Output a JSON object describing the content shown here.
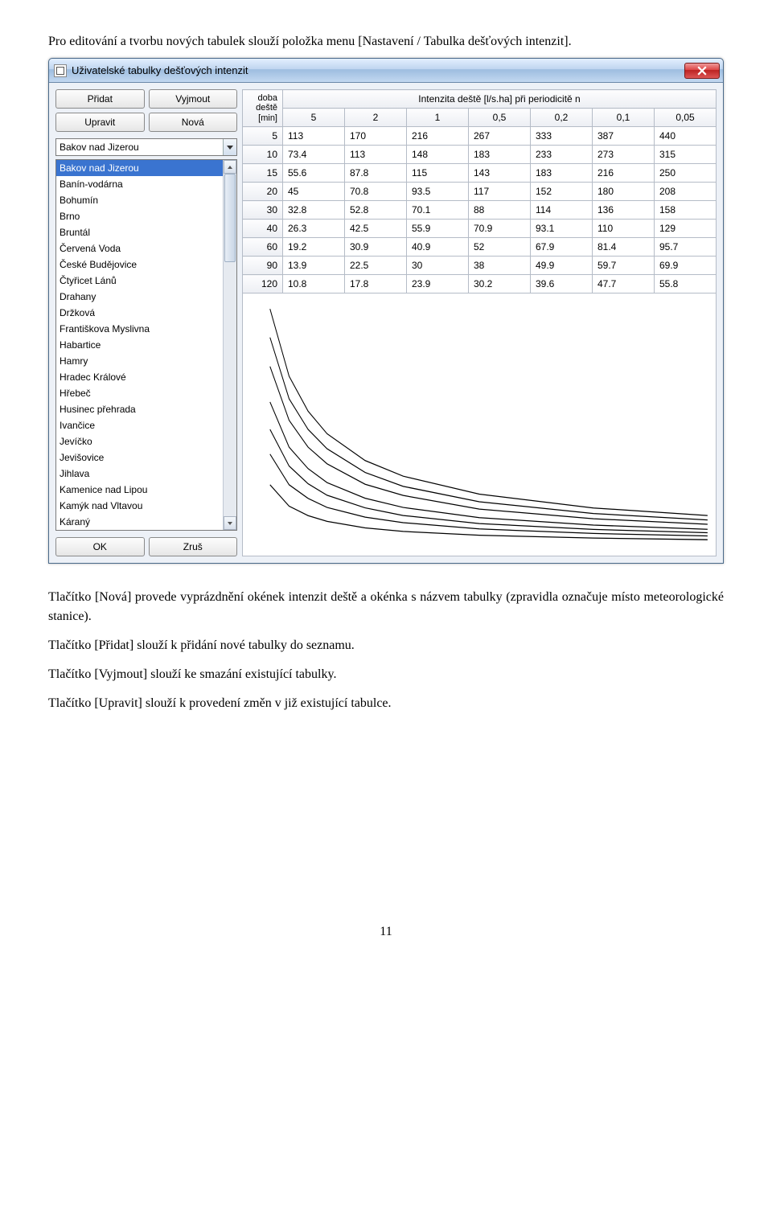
{
  "doc": {
    "para1": "Pro editování a tvorbu nových tabulek slouží položka menu [Nastavení / Tabulka dešťových intenzit].",
    "para2": "Tlačítko [Nová] provede vyprázdnění okének intenzit deště a okénka s názvem tabulky (zpravidla označuje místo meteorologické stanice).",
    "para3": "Tlačítko [Přidat] slouží k přidání nové tabulky do seznamu.",
    "para4": "Tlačítko [Vyjmout] slouží ke smazání existující tabulky.",
    "para5": "Tlačítko [Upravit] slouží k provedení změn v již existující tabulce.",
    "page_number": "11"
  },
  "window": {
    "title": "Uživatelské tabulky dešťových intenzit",
    "buttons": {
      "add": "Přidat",
      "remove": "Vyjmout",
      "edit": "Upravit",
      "new": "Nová",
      "ok": "OK",
      "cancel": "Zruš"
    },
    "combo_selected": "Bakov nad Jizerou",
    "list_items": [
      "Bakov nad Jizerou",
      "Banín-vodárna",
      "Bohumín",
      "Brno",
      "Bruntál",
      "Červená Voda",
      "České Budějovice",
      "Čtyřicet Lánů",
      "Drahany",
      "Držková",
      "Františkova Myslivna",
      "Habartice",
      "Hamry",
      "Hradec Králové",
      "Hřebeč",
      "Husinec přehrada",
      "Ivančice",
      "Jevíčko",
      "Jevišovice",
      "Jihlava",
      "Kamenice nad Lipou",
      "Kamýk nad Vltavou",
      "Káraný"
    ],
    "list_selected_index": 0,
    "table": {
      "corner_label": "doba deště [min]",
      "header_label": "Intenzita deště [l/s.ha] při periodicitě n",
      "periods": [
        "5",
        "2",
        "1",
        "0,5",
        "0,2",
        "0,1",
        "0,05"
      ],
      "durations": [
        "5",
        "10",
        "15",
        "20",
        "30",
        "40",
        "60",
        "90",
        "120"
      ],
      "rows": [
        [
          "113",
          "170",
          "216",
          "267",
          "333",
          "387",
          "440"
        ],
        [
          "73.4",
          "113",
          "148",
          "183",
          "233",
          "273",
          "315"
        ],
        [
          "55.6",
          "87.8",
          "115",
          "143",
          "183",
          "216",
          "250"
        ],
        [
          "45",
          "70.8",
          "93.5",
          "117",
          "152",
          "180",
          "208"
        ],
        [
          "32.8",
          "52.8",
          "70.1",
          "88",
          "114",
          "136",
          "158"
        ],
        [
          "26.3",
          "42.5",
          "55.9",
          "70.9",
          "93.1",
          "110",
          "129"
        ],
        [
          "19.2",
          "30.9",
          "40.9",
          "52",
          "67.9",
          "81.4",
          "95.7"
        ],
        [
          "13.9",
          "22.5",
          "30",
          "38",
          "49.9",
          "59.7",
          "69.9"
        ],
        [
          "10.8",
          "17.8",
          "23.9",
          "30.2",
          "39.6",
          "47.7",
          "55.8"
        ]
      ]
    },
    "graph": {
      "background": "#ffffff",
      "stroke": "#000000",
      "xrange": [
        0,
        120
      ],
      "series_count": 7
    }
  },
  "colors": {
    "titlebar_top": "#e3efff",
    "titlebar_bottom": "#c3d8f0",
    "selection": "#3a74d0",
    "window_bg": "#edf1f7"
  }
}
